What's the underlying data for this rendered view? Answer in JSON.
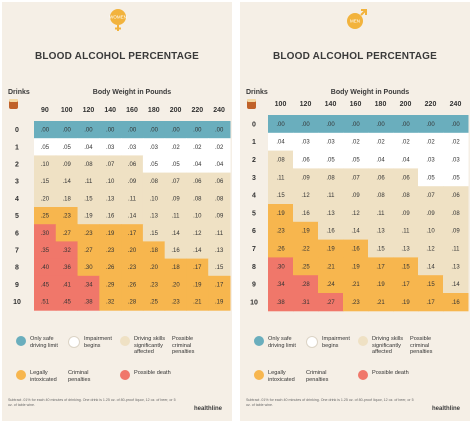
{
  "colors": {
    "safe": "#6aaebd",
    "impairment": "#ffffff",
    "driving": "#efe1c4",
    "legal": "#f7b64e",
    "death": "#f0776a",
    "female_badge": "#f2b33d",
    "male_badge": "#f2b33d",
    "background": "#f5efe6"
  },
  "chart_data": [
    {
      "type": "table",
      "sex_label": "WOMEN",
      "sex_icon": "female-symbol-icon",
      "title": "BLOOD ALCOHOL PERCENTAGE",
      "row_label": "Drinks",
      "column_label": "Body Weight in Pounds",
      "columns": [
        "90",
        "100",
        "120",
        "140",
        "160",
        "180",
        "200",
        "220",
        "240"
      ],
      "rows": [
        "0",
        "1",
        "2",
        "3",
        "4",
        "5",
        "6",
        "7",
        "8",
        "9",
        "10"
      ],
      "values": [
        [
          ".00",
          ".00",
          ".00",
          ".00",
          ".00",
          ".00",
          ".00",
          ".00",
          ".00"
        ],
        [
          ".05",
          ".05",
          ".04",
          ".03",
          ".03",
          ".03",
          ".02",
          ".02",
          ".02"
        ],
        [
          ".10",
          ".09",
          ".08",
          ".07",
          ".06",
          ".05",
          ".05",
          ".04",
          ".04"
        ],
        [
          ".15",
          ".14",
          ".11",
          ".10",
          ".09",
          ".08",
          ".07",
          ".06",
          ".06"
        ],
        [
          ".20",
          ".18",
          ".15",
          ".13",
          ".11",
          ".10",
          ".09",
          ".08",
          ".08"
        ],
        [
          ".25",
          ".23",
          ".19",
          ".16",
          ".14",
          ".13",
          ".11",
          ".10",
          ".09"
        ],
        [
          ".30",
          ".27",
          ".23",
          ".19",
          ".17",
          ".15",
          ".14",
          ".12",
          ".11"
        ],
        [
          ".35",
          ".32",
          ".27",
          ".23",
          ".20",
          ".18",
          ".16",
          ".14",
          ".13"
        ],
        [
          ".40",
          ".36",
          ".30",
          ".26",
          ".23",
          ".20",
          ".18",
          ".17",
          ".15"
        ],
        [
          ".45",
          ".41",
          ".34",
          ".29",
          ".26",
          ".23",
          ".20",
          ".19",
          ".17"
        ],
        [
          ".51",
          ".45",
          ".38",
          ".32",
          ".28",
          ".25",
          ".23",
          ".21",
          ".19"
        ]
      ],
      "zone_bounds": {
        "impairment_start": [
          1,
          1,
          1,
          1,
          1,
          1,
          1,
          1,
          1
        ],
        "driving_start": [
          2,
          2,
          2,
          2,
          2,
          3,
          3,
          3,
          3
        ],
        "legal_start": [
          5,
          5,
          6,
          6,
          6,
          7,
          8,
          8,
          9
        ],
        "death_start": [
          6,
          7,
          9,
          11,
          11,
          11,
          11,
          11,
          11
        ]
      }
    },
    {
      "type": "table",
      "sex_label": "MEN",
      "sex_icon": "male-symbol-icon",
      "title": "BLOOD ALCOHOL PERCENTAGE",
      "row_label": "Drinks",
      "column_label": "Body Weight in Pounds",
      "columns": [
        "100",
        "120",
        "140",
        "160",
        "180",
        "200",
        "220",
        "240"
      ],
      "rows": [
        "0",
        "1",
        "2",
        "3",
        "4",
        "5",
        "6",
        "7",
        "8",
        "9",
        "10"
      ],
      "values": [
        [
          ".00",
          ".00",
          ".00",
          ".00",
          ".00",
          ".00",
          ".00",
          ".00"
        ],
        [
          ".04",
          ".03",
          ".03",
          ".02",
          ".02",
          ".02",
          ".02",
          ".02"
        ],
        [
          ".08",
          ".06",
          ".05",
          ".05",
          ".04",
          ".04",
          ".03",
          ".03"
        ],
        [
          ".11",
          ".09",
          ".08",
          ".07",
          ".06",
          ".06",
          ".05",
          ".05"
        ],
        [
          ".15",
          ".12",
          ".11",
          ".09",
          ".08",
          ".08",
          ".07",
          ".06"
        ],
        [
          ".19",
          ".16",
          ".13",
          ".12",
          ".11",
          ".09",
          ".09",
          ".08"
        ],
        [
          ".23",
          ".19",
          ".16",
          ".14",
          ".13",
          ".11",
          ".10",
          ".09"
        ],
        [
          ".26",
          ".22",
          ".19",
          ".16",
          ".15",
          ".13",
          ".12",
          ".11"
        ],
        [
          ".30",
          ".25",
          ".21",
          ".19",
          ".17",
          ".15",
          ".14",
          ".13"
        ],
        [
          ".34",
          ".28",
          ".24",
          ".21",
          ".19",
          ".17",
          ".15",
          ".14"
        ],
        [
          ".38",
          ".31",
          ".27",
          ".23",
          ".21",
          ".19",
          ".17",
          ".16"
        ]
      ],
      "zone_bounds": {
        "impairment_start": [
          1,
          1,
          1,
          1,
          1,
          1,
          1,
          1
        ],
        "driving_start": [
          2,
          3,
          3,
          3,
          3,
          3,
          4,
          4
        ],
        "legal_start": [
          5,
          6,
          7,
          7,
          8,
          8,
          9,
          10
        ],
        "death_start": [
          8,
          9,
          10,
          11,
          11,
          11,
          11,
          11
        ]
      }
    }
  ],
  "legend": [
    {
      "key": "safe",
      "label": "Only safe driving limit"
    },
    {
      "key": "impairment",
      "label": "Impairment begins"
    },
    {
      "key": "driving",
      "label": "Driving skills significantly affected"
    },
    {
      "key": "criminal",
      "label": "Possible criminal penalties"
    },
    {
      "key": "legal",
      "label": "Legally intoxicated"
    },
    {
      "key": "criminal2",
      "label": "Criminal penalties"
    },
    {
      "key": "death",
      "label": "Possible death"
    }
  ],
  "footnote": "Subtract .01% for each 40 minutes of drinking. One drink is 1.25 oz. of 80-proof liquor, 12 oz. of beer, or 5 oz. of table wine.",
  "brand": "healthline"
}
